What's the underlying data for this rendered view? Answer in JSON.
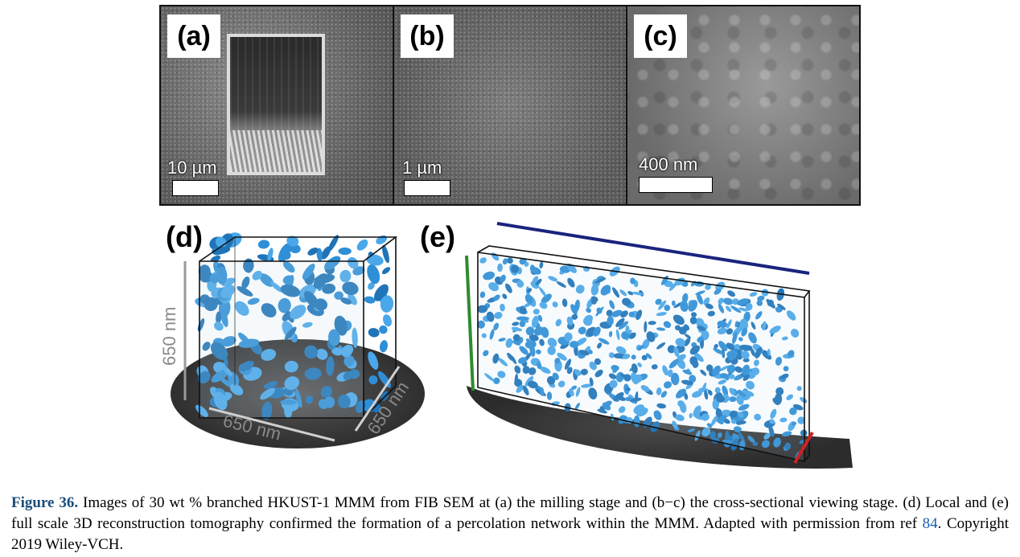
{
  "panels": {
    "a": {
      "label": "(a)",
      "scale": "10 µm"
    },
    "b": {
      "label": "(b)",
      "scale": "1 µm"
    },
    "c": {
      "label": "(c)",
      "scale": "400 nm"
    },
    "d": {
      "label": "(d)",
      "dim_vertical": "650 nm",
      "dim_front": "650 nm",
      "dim_side": "650 nm"
    },
    "e": {
      "label": "(e)"
    }
  },
  "colors": {
    "network": "#2f8fd6",
    "shadow": "#3a3a3a",
    "axis_green": "#2e8b2e",
    "axis_blue": "#1a237e",
    "axis_red": "#cc2222"
  },
  "caption": {
    "label": "Figure 36.",
    "text": " Images of 30 wt % branched HKUST-1 MMM from FIB SEM at (a) the milling stage and (b−c) the cross-sectional viewing stage. (d) Local and (e) full scale 3D reconstruction tomography confirmed the formation of a percolation network within the MMM. Adapted with permission from ref ",
    "ref": "84",
    "tail": ". Copyright 2019 Wiley-VCH."
  }
}
